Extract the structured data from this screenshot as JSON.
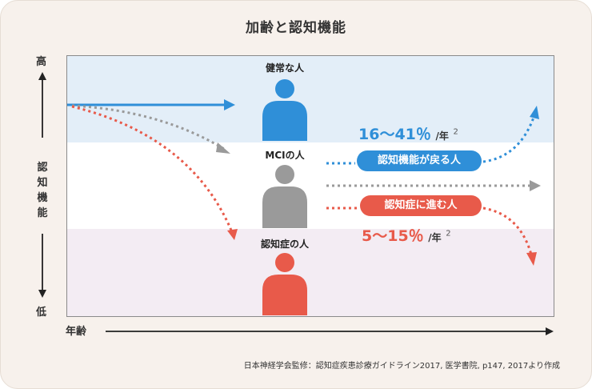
{
  "title": "加齢と認知機能",
  "y_axis": {
    "high": "高",
    "low": "低",
    "label": [
      "認",
      "知",
      "機",
      "能"
    ]
  },
  "x_axis": {
    "label": "年齢"
  },
  "people": {
    "healthy": {
      "label": "健常な人",
      "color": "#2f8fd8"
    },
    "mci": {
      "label": "MCIの人",
      "color": "#9a9a9a"
    },
    "dementia": {
      "label": "認知症の人",
      "color": "#e85a4a"
    }
  },
  "outcomes": {
    "recover": {
      "label": "認知機能が戻る人",
      "rate": "16～41％",
      "unit": "/年",
      "sup": "2",
      "color": "#2f8fd8"
    },
    "progress": {
      "label": "認知症に進む人",
      "rate": "5～15％",
      "unit": "/年",
      "sup": "2",
      "color": "#e85a4a"
    }
  },
  "source": "日本神経学会監修：認知症疾患診療ガイドライン2017, 医学書院, p147, 2017より作成"
}
